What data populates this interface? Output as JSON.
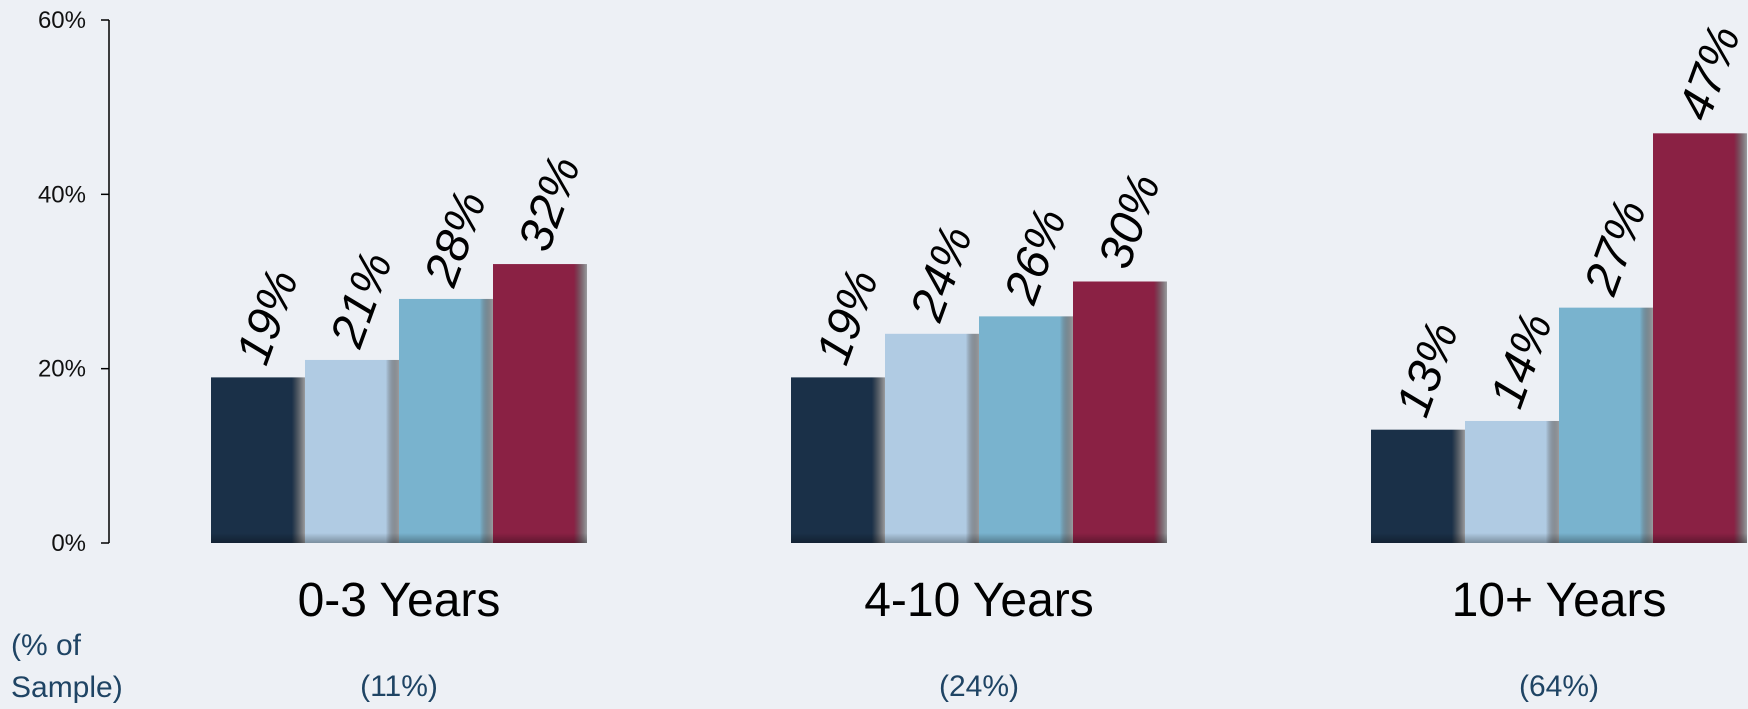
{
  "chart_data": {
    "type": "bar",
    "categories": [
      "0-3 Years",
      "4-10 Years",
      "10+ Years"
    ],
    "category_notes": [
      "(11%)",
      "(24%)",
      "(64%)"
    ],
    "note_label": "(% of Sample)",
    "series": [
      {
        "values": [
          19,
          19,
          13
        ],
        "color": "#1a3048"
      },
      {
        "values": [
          21,
          24,
          14
        ],
        "color": "#b0cbe3"
      },
      {
        "values": [
          28,
          26,
          27
        ],
        "color": "#79b3ce"
      },
      {
        "values": [
          32,
          30,
          47
        ],
        "color": "#8a2144"
      }
    ],
    "data_labels": [
      [
        "19%",
        "21%",
        "28%",
        "32%"
      ],
      [
        "19%",
        "24%",
        "26%",
        "30%"
      ],
      [
        "13%",
        "14%",
        "27%",
        "47%"
      ]
    ],
    "yticks": [
      0,
      20,
      40,
      60
    ],
    "ytick_labels": [
      "0%",
      "20%",
      "40%",
      "60%"
    ],
    "ylim": [
      0,
      60
    ],
    "title": "",
    "xlabel": "",
    "ylabel": "",
    "legend": "none",
    "grid": false
  }
}
